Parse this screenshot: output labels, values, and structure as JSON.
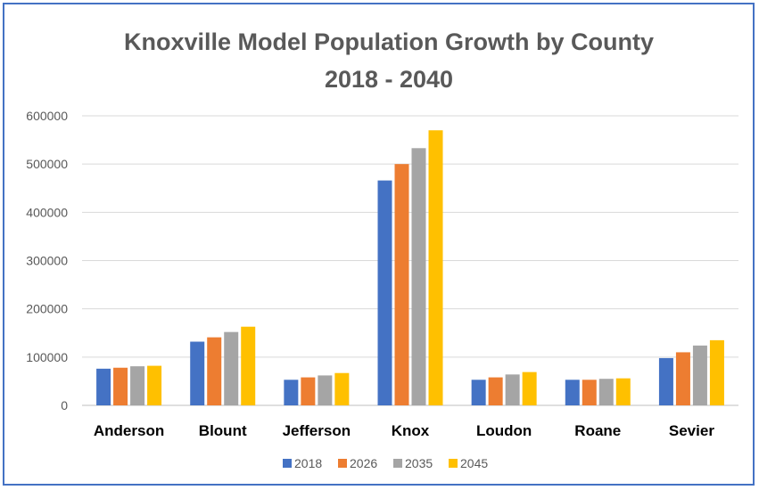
{
  "chart_data": {
    "type": "bar",
    "title_lines": [
      "Knoxville Model Population  Growth by County",
      "2018 - 2040"
    ],
    "categories": [
      "Anderson",
      "Blount",
      "Jefferson",
      "Knox",
      "Loudon",
      "Roane",
      "Sevier"
    ],
    "series": [
      {
        "name": "2018",
        "color": "#4472c4",
        "values": [
          76000,
          132000,
          53000,
          466000,
          53000,
          53000,
          98000
        ]
      },
      {
        "name": "2026",
        "color": "#ed7d31",
        "values": [
          78000,
          141000,
          58000,
          500000,
          58000,
          53000,
          110000
        ]
      },
      {
        "name": "2035",
        "color": "#a5a5a5",
        "values": [
          81000,
          152000,
          62000,
          533000,
          64000,
          55000,
          124000
        ]
      },
      {
        "name": "2045",
        "color": "#ffc000",
        "values": [
          82000,
          163000,
          67000,
          570000,
          69000,
          56000,
          135000
        ]
      }
    ],
    "ylim": [
      0,
      600000
    ],
    "yticks": [
      0,
      100000,
      200000,
      300000,
      400000,
      500000,
      600000
    ],
    "ytick_labels": [
      "0",
      "100000",
      "200000",
      "300000",
      "400000",
      "500000",
      "600000"
    ],
    "grid": true,
    "legend_position": "bottom"
  }
}
